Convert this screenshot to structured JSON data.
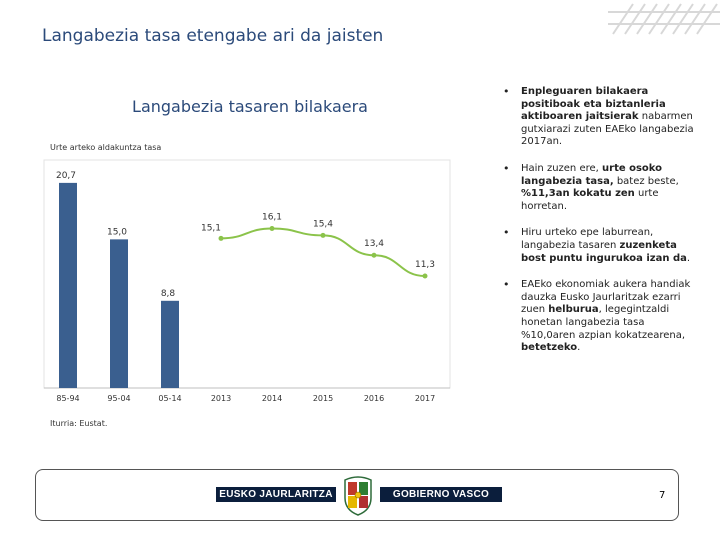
{
  "slide": {
    "title": "Langabezia tasa etengabe ari da jaisten",
    "page_number": "7"
  },
  "chart_data": {
    "type": "bar+line",
    "title": "Langabezia tasaren bilakaera",
    "ylabel": "Urte arteko aldakuntza tasa",
    "source": "Iturria: Eustat.",
    "bars": {
      "categories": [
        "85-94",
        "95-04",
        "05-14"
      ],
      "values": [
        20.7,
        15.0,
        8.8
      ],
      "labels": [
        "20,7",
        "15,0",
        "8,8"
      ],
      "color": "#3a5f8f"
    },
    "line": {
      "categories": [
        "2013",
        "2014",
        "2015",
        "2016",
        "2017"
      ],
      "values": [
        15.1,
        16.1,
        15.4,
        13.4,
        11.3
      ],
      "labels": [
        "15,1",
        "16,1",
        "15,4",
        "13,4",
        "11,3"
      ],
      "color": "#8bc34a"
    },
    "ylim": [
      0,
      22
    ],
    "grid": false
  },
  "bullets": [
    {
      "segments": [
        {
          "text": "Enpleguaren bilakaera positiboak eta biztanleria aktiboaren jaitsierak",
          "bold": true
        },
        {
          "text": " nabarmen gutxiarazi zuten EAEko langabezia 2017an.",
          "bold": false
        }
      ]
    },
    {
      "segments": [
        {
          "text": "Hain zuzen ere, ",
          "bold": false
        },
        {
          "text": "urte osoko langabezia tasa,",
          "bold": true
        },
        {
          "text": " batez beste, ",
          "bold": false
        },
        {
          "text": "%11,3an kokatu zen",
          "bold": true
        },
        {
          "text": " urte horretan.",
          "bold": false
        }
      ]
    },
    {
      "segments": [
        {
          "text": "Hiru urteko epe laburrean, langabezia tasaren ",
          "bold": false
        },
        {
          "text": "zuzenketa bost puntu ingurukoa izan da",
          "bold": true
        },
        {
          "text": ".",
          "bold": false
        }
      ]
    },
    {
      "segments": [
        {
          "text": "EAEko ekonomiak aukera handiak dauzka Eusko Jaurlaritzak ezarri zuen ",
          "bold": false
        },
        {
          "text": "helburua",
          "bold": true
        },
        {
          "text": ", legegintzaldi honetan langabezia tasa %10,0aren azpian kokatzearena, ",
          "bold": false
        },
        {
          "text": "betetzeko",
          "bold": true
        },
        {
          "text": ".",
          "bold": false
        }
      ]
    }
  ],
  "footer": {
    "left_label": "EUSKO JAURLARITZA",
    "right_label": "GOBIERNO VASCO"
  },
  "colors": {
    "title": "#2b4a7a",
    "bar": "#3a5f8f",
    "line": "#8bc34a",
    "footer_band": "#0b1e3c"
  }
}
